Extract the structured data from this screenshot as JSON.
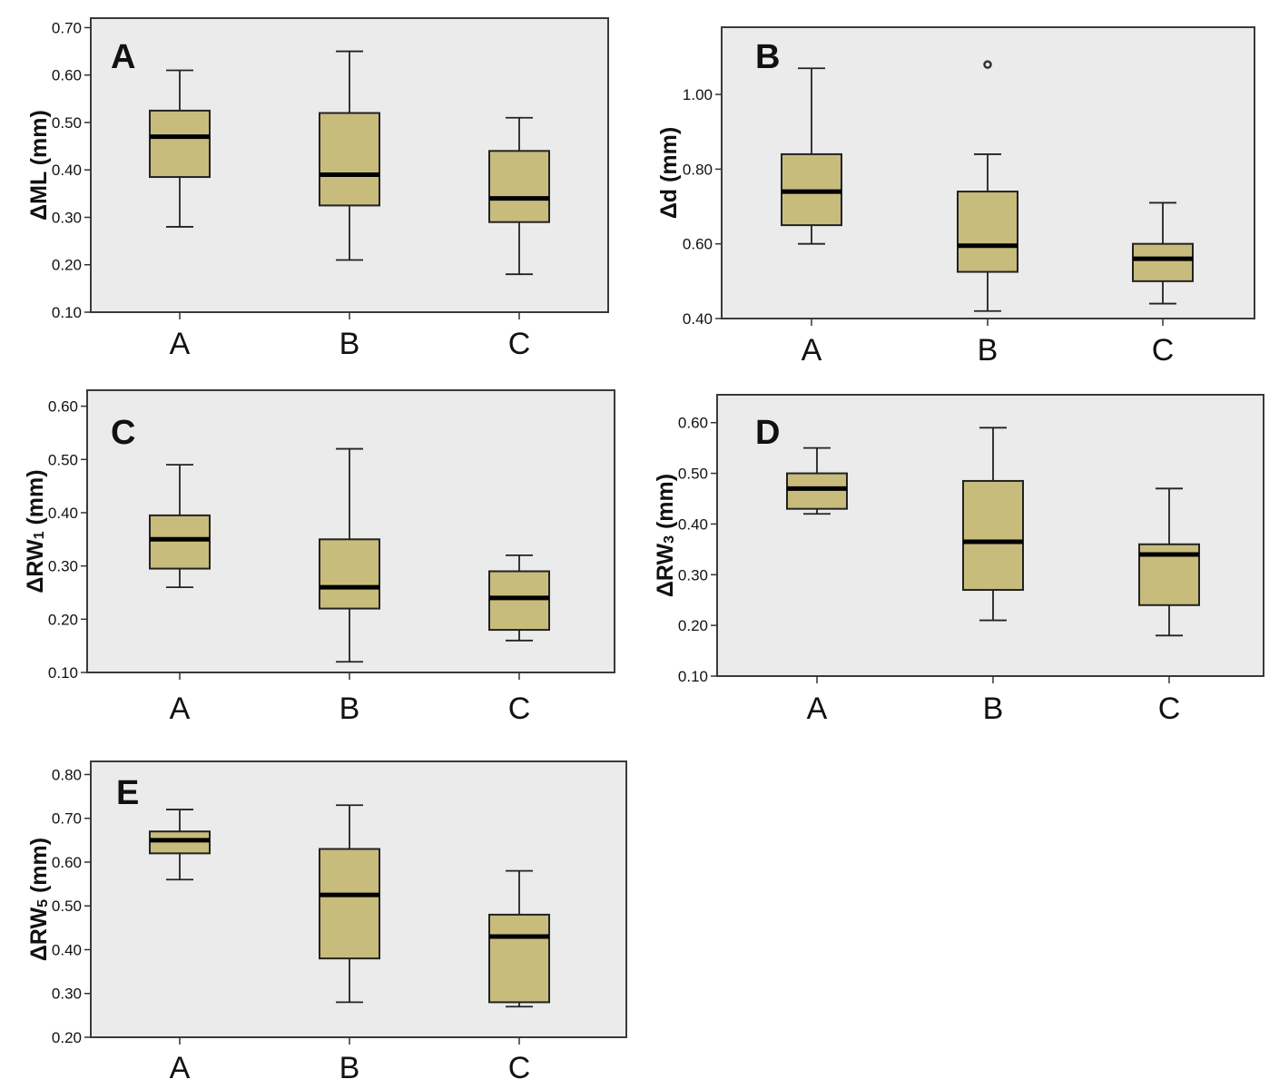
{
  "chart_data": [
    {
      "type": "boxplot",
      "panel_label": "A",
      "ylabel": "ΔML (mm)",
      "ylabel_parts": [
        "ΔML",
        "",
        " (mm)"
      ],
      "ylim": [
        0.1,
        0.72
      ],
      "yticks": [
        0.1,
        0.2,
        0.3,
        0.4,
        0.5,
        0.6,
        0.7
      ],
      "ytick_labels": [
        "0.10",
        "0.20",
        "0.30",
        "0.40",
        "0.50",
        "0.60",
        "0.70"
      ],
      "categories": [
        "A",
        "B",
        "C"
      ],
      "boxes": [
        {
          "min": 0.28,
          "q1": 0.385,
          "median": 0.47,
          "q3": 0.525,
          "max": 0.61,
          "outliers": []
        },
        {
          "min": 0.21,
          "q1": 0.325,
          "median": 0.39,
          "q3": 0.52,
          "max": 0.65,
          "outliers": []
        },
        {
          "min": 0.18,
          "q1": 0.29,
          "median": 0.34,
          "q3": 0.44,
          "max": 0.51,
          "outliers": []
        }
      ]
    },
    {
      "type": "boxplot",
      "panel_label": "B",
      "ylabel": "Δd (mm)",
      "ylabel_parts": [
        "Δd",
        "",
        " (mm)"
      ],
      "ylim": [
        0.4,
        1.18
      ],
      "yticks": [
        0.4,
        0.6,
        0.8,
        1.0
      ],
      "ytick_labels": [
        "0.40",
        "0.60",
        "0.80",
        "1.00"
      ],
      "categories": [
        "A",
        "B",
        "C"
      ],
      "boxes": [
        {
          "min": 0.6,
          "q1": 0.65,
          "median": 0.74,
          "q3": 0.84,
          "max": 1.07,
          "outliers": []
        },
        {
          "min": 0.42,
          "q1": 0.525,
          "median": 0.595,
          "q3": 0.74,
          "max": 0.84,
          "outliers": [
            1.08
          ]
        },
        {
          "min": 0.44,
          "q1": 0.5,
          "median": 0.56,
          "q3": 0.6,
          "max": 0.71,
          "outliers": []
        }
      ]
    },
    {
      "type": "boxplot",
      "panel_label": "C",
      "ylabel": "ΔRW1 (mm)",
      "ylabel_parts": [
        "ΔRW",
        "1",
        " (mm)"
      ],
      "ylim": [
        0.1,
        0.63
      ],
      "yticks": [
        0.1,
        0.2,
        0.3,
        0.4,
        0.5,
        0.6
      ],
      "ytick_labels": [
        "0.10",
        "0.20",
        "0.30",
        "0.40",
        "0.50",
        "0.60"
      ],
      "categories": [
        "A",
        "B",
        "C"
      ],
      "boxes": [
        {
          "min": 0.26,
          "q1": 0.295,
          "median": 0.35,
          "q3": 0.395,
          "max": 0.49,
          "outliers": []
        },
        {
          "min": 0.12,
          "q1": 0.22,
          "median": 0.26,
          "q3": 0.35,
          "max": 0.52,
          "outliers": []
        },
        {
          "min": 0.16,
          "q1": 0.18,
          "median": 0.24,
          "q3": 0.29,
          "max": 0.32,
          "outliers": []
        }
      ]
    },
    {
      "type": "boxplot",
      "panel_label": "D",
      "ylabel": "ΔRW3 (mm)",
      "ylabel_parts": [
        "ΔRW",
        "3",
        " (mm)"
      ],
      "ylim": [
        0.1,
        0.655
      ],
      "yticks": [
        0.1,
        0.2,
        0.3,
        0.4,
        0.5,
        0.6
      ],
      "ytick_labels": [
        "0.10",
        "0.20",
        "0.30",
        "0.40",
        "0.50",
        "0.60"
      ],
      "categories": [
        "A",
        "B",
        "C"
      ],
      "boxes": [
        {
          "min": 0.42,
          "q1": 0.43,
          "median": 0.47,
          "q3": 0.5,
          "max": 0.55,
          "outliers": []
        },
        {
          "min": 0.21,
          "q1": 0.27,
          "median": 0.365,
          "q3": 0.485,
          "max": 0.59,
          "outliers": []
        },
        {
          "min": 0.18,
          "q1": 0.24,
          "median": 0.34,
          "q3": 0.36,
          "max": 0.47,
          "outliers": []
        }
      ]
    },
    {
      "type": "boxplot",
      "panel_label": "E",
      "ylabel": "ΔRW5 (mm)",
      "ylabel_parts": [
        "ΔRW",
        "5",
        " (mm)"
      ],
      "ylim": [
        0.2,
        0.83
      ],
      "yticks": [
        0.2,
        0.3,
        0.4,
        0.5,
        0.6,
        0.7,
        0.8
      ],
      "ytick_labels": [
        "0.20",
        "0.30",
        "0.40",
        "0.50",
        "0.60",
        "0.70",
        "0.80"
      ],
      "categories": [
        "A",
        "B",
        "C"
      ],
      "boxes": [
        {
          "min": 0.56,
          "q1": 0.62,
          "median": 0.65,
          "q3": 0.67,
          "max": 0.72,
          "outliers": []
        },
        {
          "min": 0.28,
          "q1": 0.38,
          "median": 0.525,
          "q3": 0.63,
          "max": 0.73,
          "outliers": []
        },
        {
          "min": 0.27,
          "q1": 0.28,
          "median": 0.43,
          "q3": 0.48,
          "max": 0.58,
          "outliers": []
        }
      ]
    }
  ],
  "colors": {
    "box_fill": "#c8bc7c",
    "plot_background": "#ebebeb",
    "median": "#000000"
  }
}
